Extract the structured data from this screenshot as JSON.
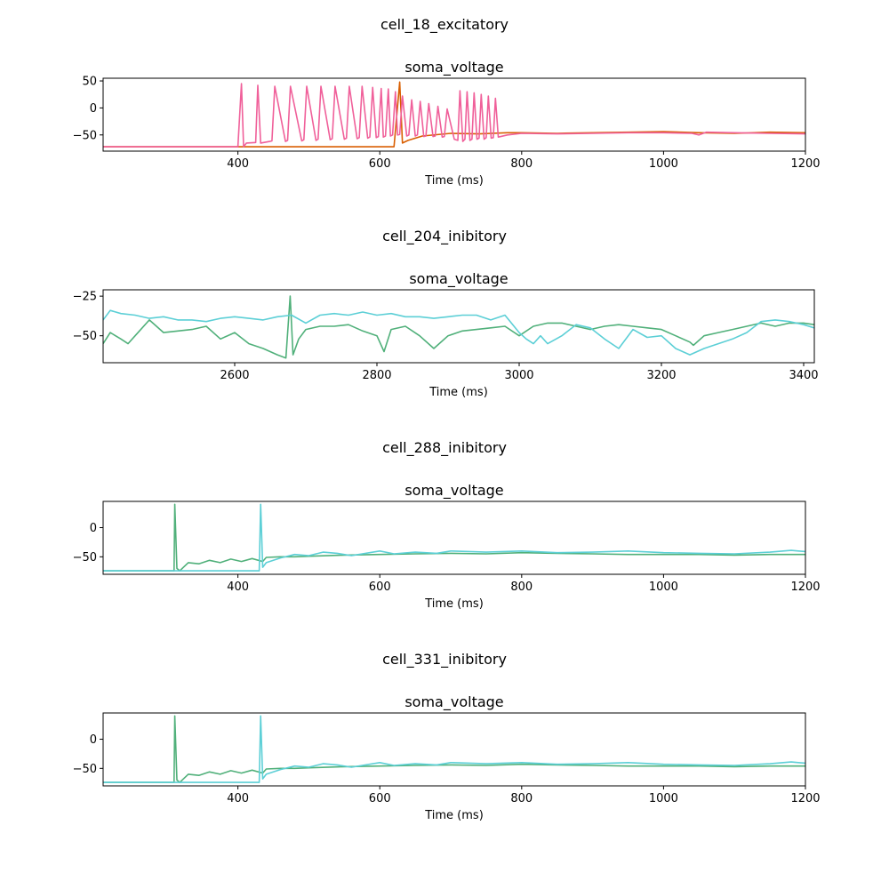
{
  "chart_data": [
    {
      "type": "line",
      "cell_title": "cell_18_excitatory",
      "title": "soma_voltage",
      "xlabel": "Time (ms)",
      "ylabel": "",
      "xlim": [
        210,
        1200
      ],
      "ylim": [
        -80,
        55
      ],
      "xticks": [
        400,
        600,
        800,
        1000,
        1200
      ],
      "yticks": [
        50,
        0,
        -50
      ],
      "series": [
        {
          "color": "#d95f02",
          "x": [
            210,
            400,
            600,
            620,
            628,
            632,
            640,
            660,
            700,
            740,
            780,
            800,
            850,
            900,
            950,
            1000,
            1050,
            1100,
            1150,
            1200
          ],
          "y": [
            -72,
            -72,
            -72,
            -72,
            48,
            -65,
            -60,
            -52,
            -47,
            -48,
            -46,
            -46,
            -47,
            -46,
            -45,
            -44,
            -46,
            -47,
            -45,
            -46
          ]
        },
        {
          "color": "#f0609a",
          "x": [
            210,
            400,
            405,
            408,
            412,
            425,
            428,
            432,
            445,
            448,
            452,
            467,
            470,
            474,
            490,
            493,
            497,
            510,
            513,
            517,
            530,
            533,
            537,
            550,
            553,
            557,
            568,
            571,
            575,
            583,
            586,
            590,
            595,
            598,
            602,
            605,
            608,
            612,
            615,
            618,
            622,
            625,
            628,
            632,
            638,
            641,
            645,
            650,
            653,
            657,
            662,
            665,
            669,
            675,
            678,
            682,
            688,
            691,
            695,
            705,
            710,
            713,
            717,
            720,
            723,
            727,
            730,
            733,
            737,
            740,
            743,
            747,
            750,
            753,
            757,
            760,
            763,
            767,
            780,
            800,
            850,
            900,
            950,
            1000,
            1040,
            1050,
            1060,
            1100,
            1150,
            1200
          ],
          "y": [
            -72,
            -72,
            45,
            -72,
            -65,
            -64,
            42,
            -65,
            -62,
            -61,
            40,
            -62,
            -60,
            40,
            -61,
            -59,
            40,
            -60,
            -58,
            40,
            -59,
            -57,
            40,
            -58,
            -56,
            40,
            -57,
            -55,
            40,
            -56,
            -54,
            38,
            -55,
            -53,
            36,
            -54,
            -52,
            35,
            -52,
            -50,
            30,
            -50,
            -49,
            22,
            -52,
            -50,
            15,
            -52,
            -50,
            12,
            -53,
            -52,
            8,
            -53,
            -52,
            3,
            -54,
            -53,
            -2,
            -58,
            -60,
            32,
            -62,
            -58,
            30,
            -60,
            -58,
            28,
            -58,
            -56,
            25,
            -58,
            -55,
            22,
            -56,
            -55,
            18,
            -54,
            -50,
            -47,
            -48,
            -47,
            -46,
            -46,
            -47,
            -50,
            -45,
            -46,
            -47,
            -48
          ]
        }
      ]
    },
    {
      "type": "line",
      "cell_title": "cell_204_inibitory",
      "title": "soma_voltage",
      "xlabel": "Time (ms)",
      "ylabel": "",
      "xlim": [
        2415,
        3415
      ],
      "ylim": [
        -67,
        -21
      ],
      "xticks": [
        2600,
        2800,
        3000,
        3200,
        3400
      ],
      "yticks": [
        -25,
        -50
      ],
      "series": [
        {
          "color": "#50b07a",
          "x": [
            2415,
            2425,
            2440,
            2450,
            2460,
            2480,
            2500,
            2520,
            2540,
            2560,
            2580,
            2600,
            2620,
            2640,
            2660,
            2672,
            2678,
            2682,
            2690,
            2700,
            2720,
            2740,
            2760,
            2780,
            2800,
            2810,
            2820,
            2840,
            2860,
            2880,
            2900,
            2920,
            2940,
            2960,
            2980,
            3000,
            3020,
            3040,
            3060,
            3080,
            3100,
            3120,
            3140,
            3160,
            3180,
            3200,
            3220,
            3240,
            3245,
            3260,
            3280,
            3300,
            3320,
            3340,
            3360,
            3380,
            3400,
            3415
          ],
          "y": [
            -55,
            -48,
            -52,
            -55,
            -50,
            -40,
            -48,
            -47,
            -46,
            -44,
            -52,
            -48,
            -55,
            -58,
            -62,
            -64,
            -25,
            -62,
            -52,
            -46,
            -44,
            -44,
            -43,
            -47,
            -50,
            -60,
            -46,
            -44,
            -50,
            -58,
            -50,
            -47,
            -46,
            -45,
            -44,
            -50,
            -44,
            -42,
            -42,
            -44,
            -46,
            -44,
            -43,
            -44,
            -45,
            -46,
            -50,
            -54,
            -56,
            -50,
            -48,
            -46,
            -44,
            -42,
            -44,
            -42,
            -42,
            -43
          ]
        },
        {
          "color": "#5ccfd6",
          "x": [
            2415,
            2425,
            2440,
            2460,
            2480,
            2500,
            2520,
            2540,
            2560,
            2580,
            2600,
            2620,
            2640,
            2660,
            2680,
            2700,
            2720,
            2740,
            2760,
            2780,
            2800,
            2820,
            2840,
            2860,
            2880,
            2900,
            2920,
            2940,
            2960,
            2980,
            3000,
            3010,
            3020,
            3030,
            3040,
            3060,
            3080,
            3100,
            3120,
            3140,
            3160,
            3180,
            3200,
            3220,
            3240,
            3260,
            3280,
            3300,
            3320,
            3340,
            3360,
            3380,
            3400,
            3415
          ],
          "y": [
            -40,
            -34,
            -36,
            -37,
            -39,
            -38,
            -40,
            -40,
            -41,
            -39,
            -38,
            -39,
            -40,
            -38,
            -37,
            -42,
            -37,
            -36,
            -37,
            -35,
            -37,
            -36,
            -38,
            -38,
            -39,
            -38,
            -37,
            -37,
            -40,
            -37,
            -48,
            -52,
            -55,
            -50,
            -55,
            -50,
            -43,
            -45,
            -52,
            -58,
            -46,
            -51,
            -50,
            -58,
            -62,
            -58,
            -55,
            -52,
            -48,
            -41,
            -40,
            -41,
            -43,
            -45
          ]
        }
      ]
    },
    {
      "type": "line",
      "cell_title": "cell_288_inibitory",
      "title": "soma_voltage",
      "xlabel": "Time (ms)",
      "ylabel": "",
      "xlim": [
        210,
        1200
      ],
      "ylim": [
        -80,
        45
      ],
      "xticks": [
        400,
        600,
        800,
        1000,
        1200
      ],
      "yticks": [
        0,
        -50
      ],
      "series": [
        {
          "color": "#50b07a",
          "x": [
            210,
            310,
            311,
            314,
            318,
            330,
            345,
            360,
            375,
            390,
            405,
            420,
            435,
            440,
            460,
            480,
            500,
            550,
            600,
            650,
            700,
            750,
            800,
            850,
            900,
            950,
            1000,
            1050,
            1100,
            1150,
            1200
          ],
          "y": [
            -74,
            -74,
            40,
            -70,
            -74,
            -60,
            -62,
            -56,
            -60,
            -54,
            -58,
            -53,
            -58,
            -51,
            -50,
            -50,
            -49,
            -47,
            -46,
            -45,
            -44,
            -45,
            -43,
            -44,
            -45,
            -46,
            -46,
            -46,
            -47,
            -46,
            -46
          ]
        },
        {
          "color": "#5ccfd6",
          "x": [
            210,
            400,
            430,
            432,
            435,
            440,
            460,
            480,
            500,
            520,
            540,
            560,
            600,
            620,
            650,
            680,
            700,
            750,
            800,
            850,
            900,
            950,
            1000,
            1050,
            1100,
            1150,
            1180,
            1190,
            1200
          ],
          "y": [
            -74,
            -74,
            -74,
            40,
            -68,
            -60,
            -52,
            -46,
            -48,
            -42,
            -44,
            -48,
            -40,
            -45,
            -42,
            -44,
            -40,
            -42,
            -40,
            -43,
            -42,
            -40,
            -43,
            -44,
            -45,
            -42,
            -39,
            -40,
            -41
          ]
        }
      ]
    },
    {
      "type": "line",
      "cell_title": "cell_331_inibitory",
      "title": "soma_voltage",
      "xlabel": "Time (ms)",
      "ylabel": "",
      "xlim": [
        210,
        1200
      ],
      "ylim": [
        -80,
        45
      ],
      "xticks": [
        400,
        600,
        800,
        1000,
        1200
      ],
      "yticks": [
        0,
        -50
      ],
      "series": [
        {
          "color": "#50b07a",
          "x": [
            210,
            310,
            311,
            314,
            318,
            330,
            345,
            360,
            375,
            390,
            405,
            420,
            435,
            440,
            460,
            480,
            500,
            550,
            600,
            650,
            700,
            750,
            800,
            850,
            900,
            950,
            1000,
            1050,
            1100,
            1150,
            1200
          ],
          "y": [
            -74,
            -74,
            40,
            -70,
            -74,
            -60,
            -62,
            -56,
            -60,
            -54,
            -58,
            -53,
            -58,
            -51,
            -50,
            -50,
            -49,
            -47,
            -46,
            -45,
            -44,
            -45,
            -43,
            -44,
            -45,
            -46,
            -46,
            -46,
            -47,
            -46,
            -46
          ]
        },
        {
          "color": "#5ccfd6",
          "x": [
            210,
            400,
            430,
            432,
            435,
            440,
            460,
            480,
            500,
            520,
            540,
            560,
            600,
            620,
            650,
            680,
            700,
            750,
            800,
            850,
            900,
            950,
            1000,
            1050,
            1100,
            1150,
            1180,
            1190,
            1200
          ],
          "y": [
            -74,
            -74,
            -74,
            40,
            -68,
            -60,
            -52,
            -46,
            -48,
            -42,
            -44,
            -48,
            -40,
            -45,
            -42,
            -44,
            -40,
            -42,
            -40,
            -43,
            -42,
            -40,
            -43,
            -44,
            -45,
            -42,
            -39,
            -40,
            -41
          ]
        }
      ]
    }
  ]
}
